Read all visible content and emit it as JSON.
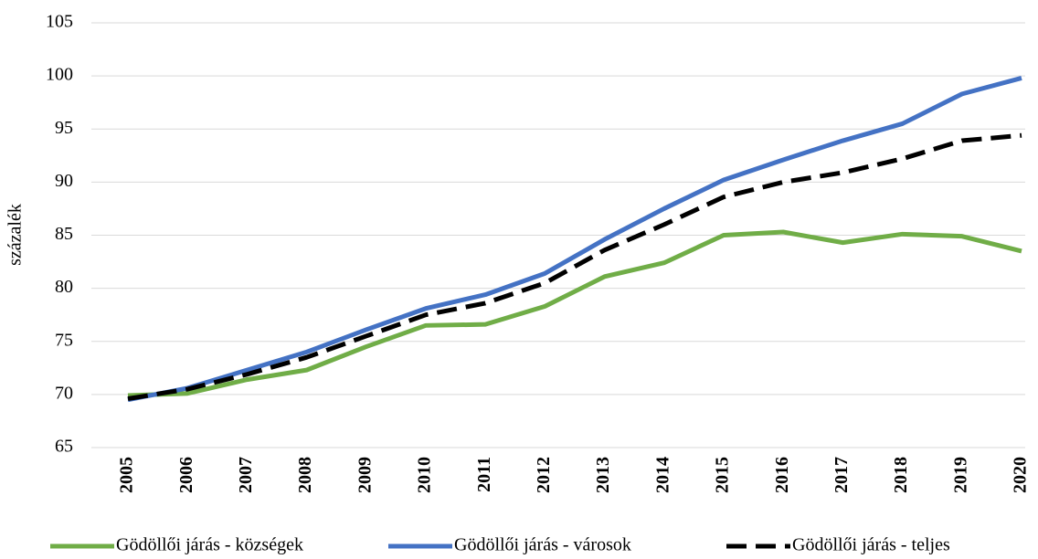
{
  "chart_data": {
    "type": "line",
    "y_label": "százalék",
    "categories": [
      "2005",
      "2006",
      "2007",
      "2008",
      "2009",
      "2010",
      "2011",
      "2012",
      "2013",
      "2014",
      "2015",
      "2016",
      "2017",
      "2018",
      "2019",
      "2020"
    ],
    "series": [
      {
        "name": "Gödöllői járás - községek",
        "color": "#70ad47",
        "dash": false,
        "values": [
          69.9,
          70.1,
          71.4,
          72.3,
          74.5,
          76.5,
          76.6,
          78.3,
          81.1,
          82.4,
          85.0,
          85.3,
          84.3,
          85.1,
          84.9,
          83.5
        ]
      },
      {
        "name": "Gödöllői járás - városok",
        "color": "#4472c4",
        "dash": false,
        "values": [
          69.5,
          70.6,
          72.3,
          74.0,
          76.1,
          78.1,
          79.4,
          81.4,
          84.6,
          87.5,
          90.2,
          92.1,
          93.9,
          95.5,
          98.3,
          99.8
        ]
      },
      {
        "name": "Gödöllői járás - teljes",
        "color": "#000000",
        "dash": true,
        "values": [
          69.6,
          70.5,
          71.9,
          73.5,
          75.5,
          77.5,
          78.6,
          80.5,
          83.6,
          86.0,
          88.6,
          90.0,
          90.9,
          92.2,
          93.9,
          94.4
        ]
      }
    ],
    "ylim": [
      65,
      105
    ],
    "yticks": [
      65,
      70,
      75,
      80,
      85,
      90,
      95,
      100,
      105
    ],
    "grid": true,
    "legend": "bottom"
  }
}
